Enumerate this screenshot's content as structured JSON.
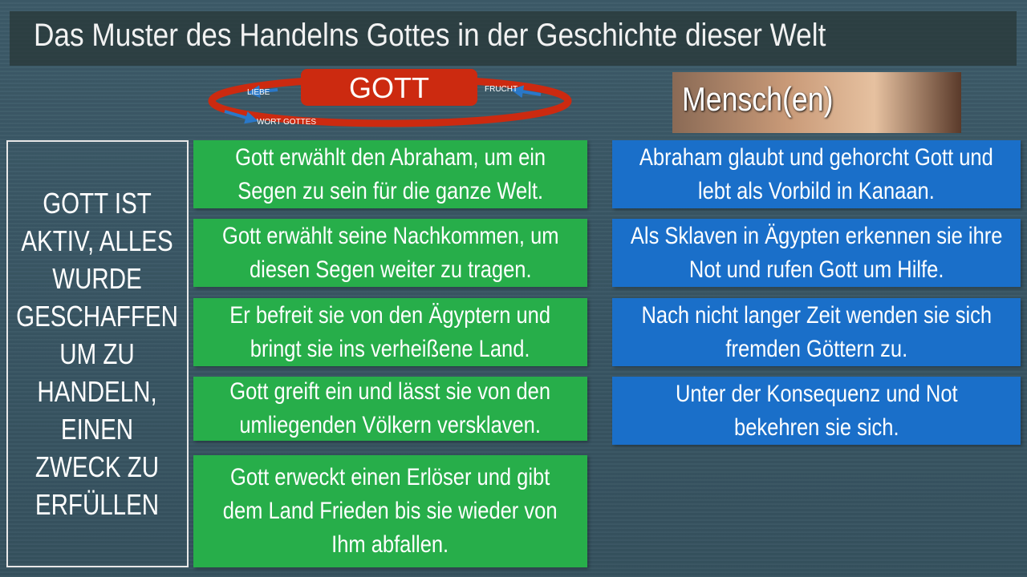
{
  "title": "Das Muster des Handelns Gottes in der Geschichte dieser Welt",
  "cycle": {
    "center": "GOTT",
    "labels": {
      "left": "LIEBE",
      "right": "FRUCHT",
      "bottom": "WORT GOTTES"
    },
    "color": "#cc2a10"
  },
  "mensch_label": "Mensch(en)",
  "left_statement": "GOTT IST AKTIV, ALLES WURDE GESCHAFFEN UM ZU HANDELN, EINEN ZWECK ZU ERFÜLLEN",
  "gott_column": [
    [
      "Gott erwählt den Abraham, um ein",
      "Segen zu sein für die ganze Welt."
    ],
    [
      "Gott erwählt seine Nachkommen, um",
      "diesen Segen weiter zu tragen."
    ],
    [
      "Er befreit sie von den Ägyptern und",
      "bringt sie ins verheißene Land."
    ],
    [
      "Gott greift ein und lässt sie von den",
      "umliegenden Völkern versklaven."
    ],
    [
      "Gott erweckt einen Erlöser und gibt",
      "dem Land Frieden bis sie wieder von",
      "Ihm abfallen."
    ]
  ],
  "mensch_column": [
    [
      "Abraham glaubt und gehorcht Gott und",
      "lebt als Vorbild in Kanaan."
    ],
    [
      "Als Sklaven in Ägypten erkennen sie ihre",
      "Not und rufen Gott um Hilfe."
    ],
    [
      "Nach nicht langer Zeit wenden sie sich",
      "fremden Göttern zu."
    ],
    [
      "Unter der Konsequenz und Not",
      "bekehren sie sich."
    ]
  ],
  "colors": {
    "green": "#27ae4a",
    "blue": "#1a6fc9",
    "background": "#3a5765"
  }
}
